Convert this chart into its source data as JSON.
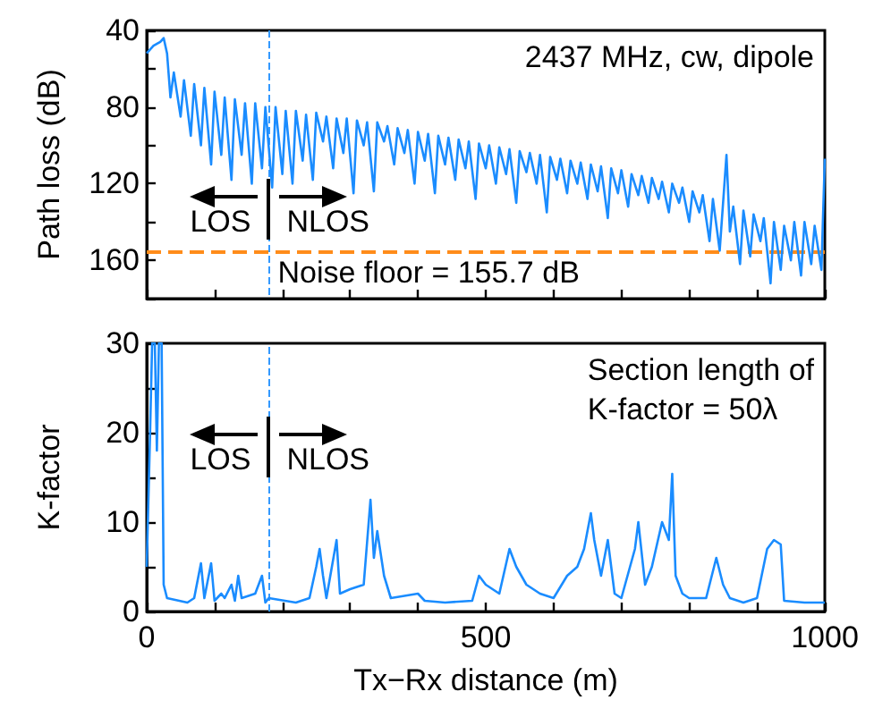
{
  "chart_data": [
    {
      "type": "line",
      "ylabel": "Path loss (dB)",
      "xlim": [
        0,
        1000
      ],
      "xticks": [
        0,
        {
          "value": 100,
          "label": null
        },
        {
          "value": 200,
          "label": null
        },
        {
          "value": 300,
          "label": null
        },
        {
          "value": 400,
          "label": null
        },
        500,
        {
          "value": 600,
          "label": null
        },
        {
          "value": 700,
          "label": null
        },
        {
          "value": 800,
          "label": null
        },
        {
          "value": 900,
          "label": null
        },
        1000
      ],
      "ylim": [
        180,
        40
      ],
      "yticks": [
        40,
        {
          "value": 60,
          "label": null
        },
        80,
        {
          "value": 100,
          "label": null
        },
        120,
        {
          "value": 140,
          "label": null
        },
        160,
        {
          "value": 180,
          "label": null
        }
      ],
      "tick_labels": "y",
      "annotations": [
        "2437 MHz, cw, dipole",
        "LOS",
        "NLOS"
      ],
      "ref_lines": [
        {
          "axis": "x",
          "value": 180,
          "color": "#3399ff",
          "line_style": "dashed"
        },
        {
          "axis": "y",
          "value": 155.7,
          "label": "Noise floor = 155.7 dB",
          "color": "#ff8c1a",
          "line_style": "dashed"
        }
      ],
      "series": [
        {
          "color": "#1a8cff",
          "x": [
            0,
            5,
            10,
            20,
            25,
            30,
            35,
            40,
            50,
            55,
            65,
            70,
            80,
            85,
            95,
            100,
            110,
            115,
            125,
            130,
            140,
            145,
            155,
            160,
            170,
            175,
            185,
            190,
            200,
            205,
            215,
            220,
            230,
            235,
            245,
            250,
            260,
            265,
            275,
            280,
            290,
            295,
            305,
            310,
            320,
            325,
            335,
            340,
            350,
            355,
            365,
            370,
            380,
            385,
            395,
            400,
            410,
            415,
            425,
            430,
            440,
            445,
            455,
            460,
            470,
            475,
            485,
            490,
            500,
            505,
            515,
            520,
            530,
            535,
            545,
            550,
            560,
            565,
            575,
            580,
            590,
            595,
            605,
            610,
            620,
            625,
            635,
            640,
            650,
            655,
            665,
            670,
            680,
            685,
            695,
            700,
            710,
            715,
            725,
            730,
            740,
            745,
            755,
            760,
            770,
            775,
            785,
            790,
            800,
            805,
            815,
            820,
            830,
            835,
            845,
            850,
            855,
            860,
            865,
            875,
            880,
            890,
            895,
            905,
            910,
            920,
            925,
            935,
            940,
            950,
            955,
            965,
            970,
            980,
            985,
            995,
            1000
          ],
          "values": [
            52,
            50,
            48,
            46,
            44,
            52,
            75,
            62,
            85,
            66,
            95,
            68,
            100,
            70,
            110,
            72,
            105,
            75,
            118,
            76,
            105,
            78,
            120,
            78,
            112,
            80,
            122,
            80,
            115,
            82,
            120,
            82,
            108,
            84,
            118,
            83,
            98,
            85,
            112,
            86,
            104,
            86,
            125,
            87,
            100,
            88,
            124,
            88,
            98,
            90,
            110,
            91,
            104,
            92,
            120,
            93,
            108,
            94,
            125,
            95,
            110,
            96,
            118,
            97,
            112,
            98,
            128,
            99,
            112,
            100,
            120,
            101,
            115,
            102,
            130,
            103,
            114,
            104,
            120,
            105,
            135,
            106,
            118,
            107,
            125,
            108,
            120,
            109,
            128,
            110,
            124,
            111,
            138,
            112,
            125,
            113,
            132,
            115,
            126,
            116,
            130,
            117,
            128,
            119,
            135,
            120,
            130,
            122,
            140,
            124,
            135,
            126,
            150,
            128,
            155,
            130,
            105,
            145,
            132,
            162,
            134,
            158,
            136,
            150,
            138,
            172,
            140,
            165,
            142,
            160,
            140,
            168,
            140,
            162,
            142,
            165,
            107
          ]
        }
      ]
    },
    {
      "type": "line",
      "xlabel": "Tx−Rx distance (m)",
      "ylabel": "K-factor",
      "xlim": [
        0,
        1000
      ],
      "xticks": [
        0,
        {
          "value": 100,
          "label": null
        },
        {
          "value": 200,
          "label": null
        },
        {
          "value": 300,
          "label": null
        },
        {
          "value": 400,
          "label": null
        },
        500,
        {
          "value": 600,
          "label": null
        },
        {
          "value": 700,
          "label": null
        },
        {
          "value": 800,
          "label": null
        },
        {
          "value": 900,
          "label": null
        },
        1000
      ],
      "ylim": [
        0,
        30
      ],
      "yticks": [
        0,
        {
          "value": 5,
          "label": null
        },
        10,
        {
          "value": 15,
          "label": null
        },
        20,
        {
          "value": 25,
          "label": null
        },
        30
      ],
      "annotations": [
        "Section length of\nK-factor = 50λ",
        "LOS",
        "NLOS"
      ],
      "ref_lines": [
        {
          "axis": "x",
          "value": 180,
          "color": "#3399ff",
          "line_style": "dashed"
        }
      ],
      "series": [
        {
          "color": "#1a8cff",
          "x": [
            0,
            5,
            8,
            12,
            15,
            18,
            22,
            25,
            30,
            60,
            70,
            80,
            85,
            95,
            100,
            110,
            115,
            125,
            130,
            135,
            140,
            160,
            170,
            175,
            180,
            220,
            240,
            250,
            255,
            260,
            265,
            280,
            285,
            300,
            320,
            330,
            335,
            340,
            350,
            360,
            400,
            410,
            440,
            480,
            490,
            500,
            520,
            535,
            545,
            560,
            580,
            600,
            620,
            635,
            645,
            655,
            660,
            670,
            680,
            690,
            700,
            720,
            725,
            735,
            745,
            760,
            770,
            775,
            780,
            790,
            800,
            825,
            840,
            850,
            860,
            880,
            900,
            915,
            925,
            935,
            940,
            970,
            1000
          ],
          "values": [
            5,
            20,
            30,
            30,
            18,
            30,
            30,
            3,
            1.5,
            1,
            1.5,
            5.4,
            1.5,
            5.4,
            1.2,
            2,
            1.5,
            3,
            1.2,
            4,
            1.5,
            2,
            4,
            1,
            1.5,
            1,
            1.5,
            5,
            7,
            4,
            1.5,
            8,
            2,
            2.5,
            3,
            12.5,
            6,
            9,
            4,
            1.5,
            2,
            1.2,
            1,
            1.2,
            4,
            3,
            2,
            7,
            5,
            3,
            2,
            1.5,
            4,
            5,
            7,
            11,
            8,
            4,
            8,
            2,
            1.5,
            7,
            10,
            3,
            5,
            10,
            8,
            15.4,
            4,
            2,
            1.5,
            1.5,
            6,
            3,
            1.5,
            1,
            1.5,
            7,
            8,
            7.5,
            1.2,
            1,
            1
          ]
        }
      ]
    }
  ]
}
